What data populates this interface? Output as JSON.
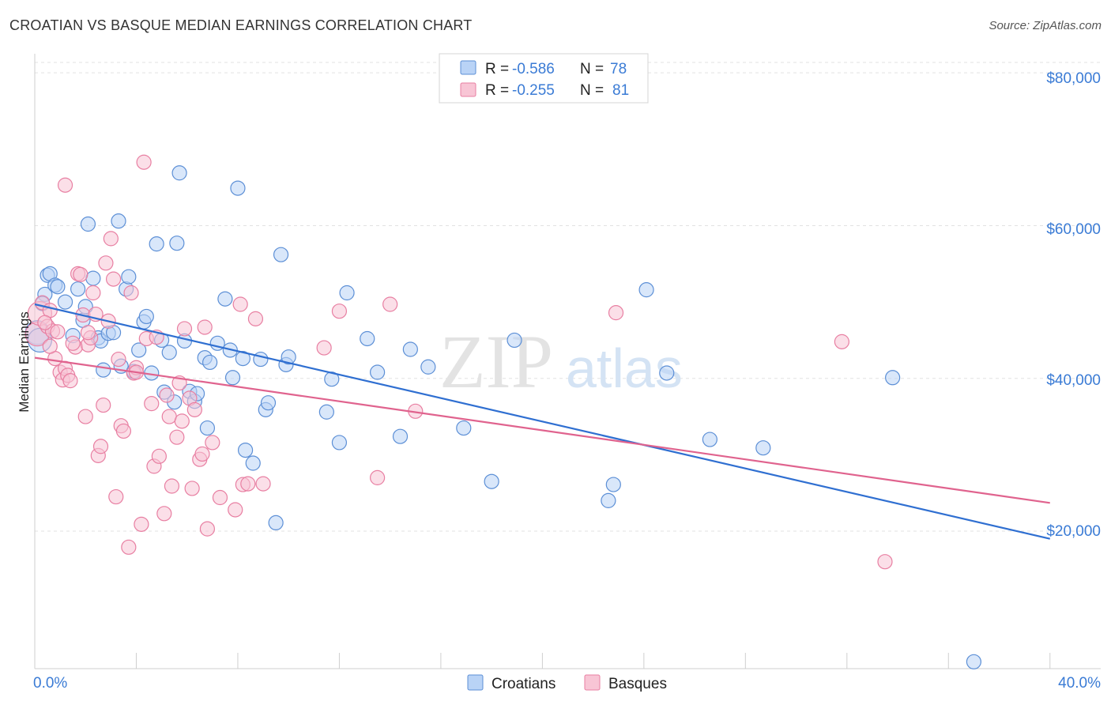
{
  "header": {
    "title": "CROATIAN VS BASQUE MEDIAN EARNINGS CORRELATION CHART",
    "source": "Source: ZipAtlas.com"
  },
  "colors": {
    "croatians_fill": "#b9d3f6",
    "croatians_stroke": "#5c8fd6",
    "croatians_line": "#2f6fd1",
    "basques_fill": "#f8c5d5",
    "basques_stroke": "#e87fa2",
    "basques_line": "#e0638e",
    "grid": "#e2e2e2",
    "accent_text": "#3a7bd5"
  },
  "legend": {
    "croatians": {
      "r_label": "R = ",
      "r_value": "-0.586",
      "n_label": "N = ",
      "n_value": "78"
    },
    "basques": {
      "r_label": "R = ",
      "r_value": "-0.255",
      "n_label": "N = ",
      "n_value": "81"
    }
  },
  "watermark": {
    "part1": "ZIP",
    "part2": "atlas"
  },
  "chart_data": {
    "type": "scatter",
    "title": "CROATIAN VS BASQUE MEDIAN EARNINGS CORRELATION CHART",
    "xlabel": "",
    "ylabel": "Median Earnings",
    "xlim": [
      0,
      42
    ],
    "ylim": [
      2000,
      82500
    ],
    "grid": true,
    "x_tick_labels": {
      "left": "0.0%",
      "right": "40.0%"
    },
    "y_ticks": [
      {
        "value": 20000,
        "label": "$20,000"
      },
      {
        "value": 40000,
        "label": "$40,000"
      },
      {
        "value": 60000,
        "label": "$60,000"
      },
      {
        "value": 80000,
        "label": "$80,000"
      }
    ],
    "legend_position": "top-center",
    "bottom_legend": [
      "Croatians",
      "Basques"
    ],
    "series": [
      {
        "name": "Croatians",
        "trend": {
          "x0": 0,
          "y0": 49700,
          "x1": 40,
          "y1": 19000
        },
        "points": [
          [
            0.1,
            46000
          ],
          [
            0.2,
            45000
          ],
          [
            0.4,
            51000
          ],
          [
            0.5,
            53500
          ],
          [
            0.6,
            53700
          ],
          [
            0.8,
            52200
          ],
          [
            0.9,
            52000
          ],
          [
            1.2,
            50000
          ],
          [
            1.5,
            45600
          ],
          [
            1.7,
            51700
          ],
          [
            1.9,
            47600
          ],
          [
            2.1,
            60200
          ],
          [
            2.3,
            53100
          ],
          [
            2.5,
            45300
          ],
          [
            2.6,
            44900
          ],
          [
            2.7,
            41100
          ],
          [
            2.9,
            45900
          ],
          [
            3.1,
            46000
          ],
          [
            3.3,
            60600
          ],
          [
            3.4,
            41600
          ],
          [
            3.6,
            51700
          ],
          [
            3.7,
            53300
          ],
          [
            3.9,
            40900
          ],
          [
            4.1,
            43700
          ],
          [
            4.3,
            47400
          ],
          [
            4.4,
            48100
          ],
          [
            4.6,
            40700
          ],
          [
            4.8,
            57600
          ],
          [
            5.0,
            45000
          ],
          [
            5.1,
            38200
          ],
          [
            5.3,
            43400
          ],
          [
            5.5,
            36900
          ],
          [
            5.6,
            57700
          ],
          [
            5.7,
            66900
          ],
          [
            5.9,
            44900
          ],
          [
            6.1,
            38300
          ],
          [
            6.3,
            37000
          ],
          [
            6.4,
            38000
          ],
          [
            6.7,
            42700
          ],
          [
            6.8,
            33500
          ],
          [
            6.9,
            42100
          ],
          [
            7.2,
            44600
          ],
          [
            7.5,
            50400
          ],
          [
            7.7,
            43700
          ],
          [
            7.8,
            40100
          ],
          [
            8.0,
            64900
          ],
          [
            8.2,
            42600
          ],
          [
            8.3,
            30600
          ],
          [
            8.6,
            28900
          ],
          [
            8.9,
            42500
          ],
          [
            9.1,
            35900
          ],
          [
            9.2,
            36800
          ],
          [
            9.5,
            21100
          ],
          [
            9.7,
            56200
          ],
          [
            9.9,
            41800
          ],
          [
            10.0,
            42800
          ],
          [
            11.5,
            35600
          ],
          [
            11.7,
            39900
          ],
          [
            12.0,
            31600
          ],
          [
            12.3,
            51200
          ],
          [
            13.1,
            45200
          ],
          [
            13.5,
            40800
          ],
          [
            14.4,
            32400
          ],
          [
            14.8,
            43800
          ],
          [
            15.5,
            41500
          ],
          [
            16.9,
            33500
          ],
          [
            18.0,
            26500
          ],
          [
            18.9,
            45000
          ],
          [
            22.6,
            24000
          ],
          [
            22.8,
            26100
          ],
          [
            24.1,
            51600
          ],
          [
            24.9,
            40700
          ],
          [
            26.6,
            32000
          ],
          [
            28.7,
            30900
          ],
          [
            33.8,
            40100
          ],
          [
            37.0,
            2900
          ],
          [
            0.3,
            49800
          ],
          [
            2.0,
            49400
          ]
        ]
      },
      {
        "name": "Basques",
        "trend": {
          "x0": 0,
          "y0": 42700,
          "x1": 40,
          "y1": 23700
        },
        "points": [
          [
            0.1,
            45800
          ],
          [
            0.2,
            48500
          ],
          [
            0.3,
            49900
          ],
          [
            0.5,
            46800
          ],
          [
            0.6,
            48900
          ],
          [
            0.7,
            46200
          ],
          [
            0.8,
            42600
          ],
          [
            0.9,
            46100
          ],
          [
            1.0,
            40800
          ],
          [
            1.1,
            39800
          ],
          [
            1.2,
            41300
          ],
          [
            1.3,
            40400
          ],
          [
            1.4,
            39700
          ],
          [
            1.6,
            44100
          ],
          [
            1.7,
            53700
          ],
          [
            1.8,
            53600
          ],
          [
            1.9,
            48300
          ],
          [
            2.0,
            35000
          ],
          [
            2.1,
            44400
          ],
          [
            2.2,
            45300
          ],
          [
            2.3,
            51200
          ],
          [
            2.4,
            48400
          ],
          [
            2.5,
            29900
          ],
          [
            2.6,
            31100
          ],
          [
            2.7,
            36500
          ],
          [
            2.8,
            55100
          ],
          [
            2.9,
            47500
          ],
          [
            3.0,
            58300
          ],
          [
            3.1,
            53000
          ],
          [
            3.2,
            24500
          ],
          [
            3.4,
            33800
          ],
          [
            3.5,
            33100
          ],
          [
            3.7,
            17900
          ],
          [
            3.8,
            51200
          ],
          [
            3.9,
            40700
          ],
          [
            4.0,
            41400
          ],
          [
            4.2,
            20900
          ],
          [
            4.3,
            68300
          ],
          [
            4.4,
            45200
          ],
          [
            4.6,
            36700
          ],
          [
            4.7,
            28500
          ],
          [
            4.8,
            45400
          ],
          [
            4.9,
            29800
          ],
          [
            5.1,
            22300
          ],
          [
            5.2,
            37800
          ],
          [
            5.3,
            35000
          ],
          [
            5.4,
            25900
          ],
          [
            5.6,
            32300
          ],
          [
            5.7,
            39400
          ],
          [
            5.8,
            34400
          ],
          [
            5.9,
            46500
          ],
          [
            6.1,
            37400
          ],
          [
            6.2,
            25600
          ],
          [
            6.3,
            35900
          ],
          [
            6.5,
            29400
          ],
          [
            6.6,
            30100
          ],
          [
            6.7,
            46700
          ],
          [
            6.8,
            20300
          ],
          [
            7.0,
            31600
          ],
          [
            7.3,
            24400
          ],
          [
            7.9,
            22800
          ],
          [
            8.1,
            49700
          ],
          [
            8.2,
            26100
          ],
          [
            8.4,
            26200
          ],
          [
            8.7,
            47800
          ],
          [
            9.0,
            26200
          ],
          [
            11.4,
            44000
          ],
          [
            12.0,
            48800
          ],
          [
            13.5,
            27000
          ],
          [
            14.0,
            49700
          ],
          [
            15.0,
            35700
          ],
          [
            22.9,
            48600
          ],
          [
            31.8,
            44800
          ],
          [
            33.5,
            16000
          ],
          [
            0.4,
            47300
          ],
          [
            0.6,
            44200
          ],
          [
            1.5,
            44600
          ],
          [
            2.1,
            46000
          ],
          [
            3.3,
            42500
          ],
          [
            4.0,
            40800
          ],
          [
            1.2,
            65300
          ]
        ]
      }
    ]
  }
}
